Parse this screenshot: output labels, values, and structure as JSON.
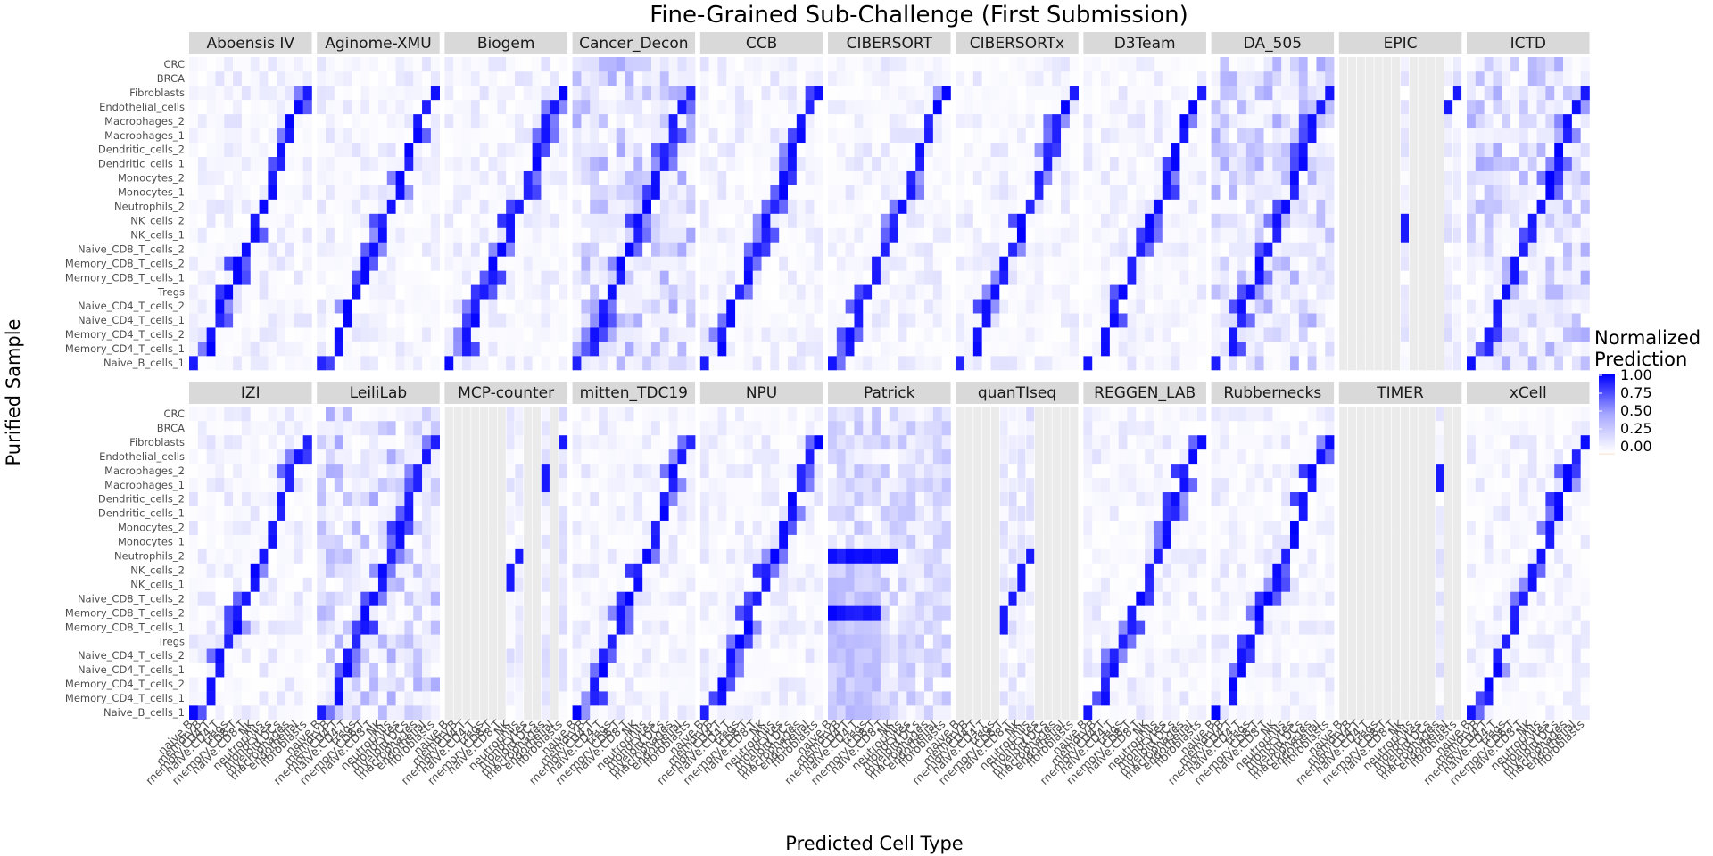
{
  "chart_data": {
    "type": "heatmap",
    "title": "Fine-Grained Sub-Challenge (First Submission)",
    "xlabel": "Predicted Cell Type",
    "ylabel": "Purified Sample",
    "legend": {
      "title": [
        "Normalized",
        "Prediction"
      ],
      "ticks": [
        "1.00",
        "0.75",
        "0.50",
        "0.25",
        "0.00"
      ],
      "placement": "right",
      "low_color": "#fbeee5",
      "mid_color": "#ffffff",
      "high_color": "#0000ff"
    },
    "na_color": "#ebebeb",
    "panel_strip_color": "#d9d9d9",
    "rows": [
      "Naive_B_cells_1",
      "Memory_CD4_T_cells_1",
      "Memory_CD4_T_cells_2",
      "Naive_CD4_T_cells_1",
      "Naive_CD4_T_cells_2",
      "Tregs",
      "Memory_CD8_T_cells_1",
      "Memory_CD8_T_cells_2",
      "Naive_CD8_T_cells_2",
      "NK_cells_1",
      "NK_cells_2",
      "Neutrophils_2",
      "Monocytes_1",
      "Monocytes_2",
      "Dendritic_cells_1",
      "Dendritic_cells_2",
      "Macrophages_1",
      "Macrophages_2",
      "Endothelial_cells",
      "Fibroblasts",
      "BRCA",
      "CRC"
    ],
    "columns": [
      "naive.B",
      "memory.B",
      "memory.CD4.T",
      "naive.CD4.T",
      "tregs",
      "memory.CD8.T",
      "naive.CD8.T",
      "NK",
      "neutrophils",
      "monocytes",
      "myeloid.DCs",
      "macrophages",
      "endothelial",
      "fibroblasts"
    ],
    "x_tick_labels": [
      "naive.B",
      "memory.B",
      "memory.CD4.T",
      "naive.CD4.T",
      "tregs",
      "memory.CD8.T",
      "naive.CD8.T",
      "NK",
      "neutrophils",
      "monocytes",
      "myeloid.DCs",
      "macrophages",
      "endothelial",
      "fibroblasts"
    ],
    "panels": [
      {
        "name": "Aboensis IV",
        "kind": "diag"
      },
      {
        "name": "Aginome-XMU",
        "kind": "diag"
      },
      {
        "name": "Biogem",
        "kind": "diag"
      },
      {
        "name": "Cancer_Decon",
        "kind": "broad"
      },
      {
        "name": "CCB",
        "kind": "diag"
      },
      {
        "name": "CIBERSORT",
        "kind": "diag",
        "na_cols": [
          3,
          4,
          8,
          9,
          10,
          13
        ]
      },
      {
        "name": "CIBERSORTx",
        "kind": "diag",
        "na_cols": [
          3,
          4,
          10,
          13
        ]
      },
      {
        "name": "D3Team",
        "kind": "diag"
      },
      {
        "name": "DA_505",
        "kind": "broad"
      },
      {
        "name": "EPIC",
        "kind": "sparse",
        "na_cols": [
          0,
          1,
          2,
          3,
          4,
          5,
          6,
          8,
          9,
          10,
          11
        ]
      },
      {
        "name": "ICTD",
        "kind": "broad"
      },
      {
        "name": "IZI",
        "kind": "diag"
      },
      {
        "name": "LeiliLab",
        "kind": "broad"
      },
      {
        "name": "MCP-counter",
        "kind": "sparse",
        "na_cols": [
          0,
          1,
          2,
          3,
          4,
          5,
          6,
          9,
          10,
          12
        ]
      },
      {
        "name": "mitten_TDC19",
        "kind": "diag"
      },
      {
        "name": "NPU",
        "kind": "diag"
      },
      {
        "name": "Patrick",
        "kind": "patrick"
      },
      {
        "name": "quanTIseq",
        "kind": "sparse",
        "na_cols": [
          0,
          1,
          2,
          3,
          4,
          9,
          10,
          11,
          12,
          13
        ]
      },
      {
        "name": "REGGEN_LAB",
        "kind": "diag"
      },
      {
        "name": "Rubbernecks",
        "kind": "diag"
      },
      {
        "name": "TIMER",
        "kind": "sparse",
        "na_cols": [
          0,
          1,
          2,
          3,
          4,
          5,
          6,
          7,
          8,
          9,
          10,
          12,
          13
        ]
      },
      {
        "name": "xCell",
        "kind": "diag"
      }
    ],
    "diagonal_map": [
      0,
      2,
      2,
      3,
      3,
      4,
      5,
      5,
      6,
      7,
      7,
      8,
      9,
      9,
      10,
      10,
      11,
      11,
      12,
      13,
      -1,
      -1
    ]
  }
}
